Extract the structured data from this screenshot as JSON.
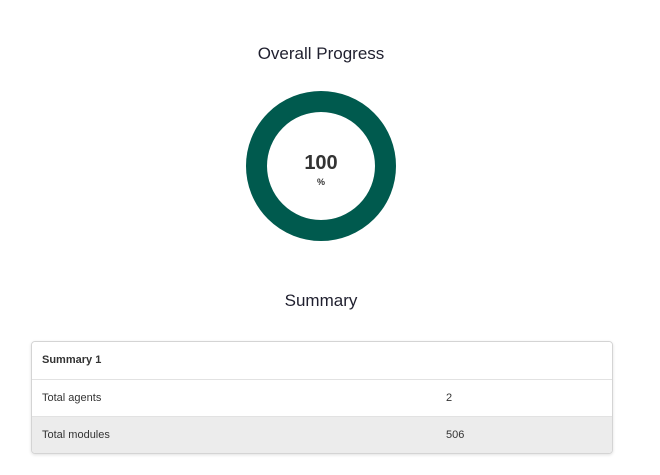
{
  "overall_progress": {
    "title": "Overall Progress",
    "value_text": "100",
    "unit": "%",
    "percent": 100,
    "ring_color": "#005a4e",
    "track_color": "#e0e0e0"
  },
  "summary": {
    "title": "Summary",
    "table": {
      "header": "Summary 1",
      "rows": [
        {
          "label": "Total agents",
          "value": "2"
        },
        {
          "label": "Total modules",
          "value": "506"
        }
      ]
    }
  }
}
